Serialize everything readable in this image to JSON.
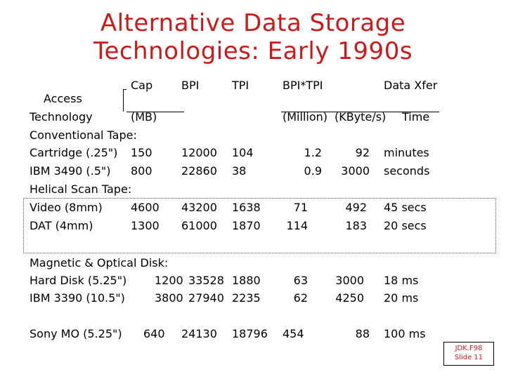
{
  "title": {
    "line1": "Alternative Data Storage",
    "line2": "Technologies: Early 1990s"
  },
  "header": {
    "access": "Access",
    "technology": "Technology",
    "cap": "Cap",
    "mb": "(MB)",
    "bpi": "BPI",
    "tpi": "TPI",
    "bpitpi": "BPI*TPI",
    "million": "(Million)",
    "xfer": "Data Xfer",
    "kbytes": "(KByte/s)",
    "time": "Time"
  },
  "sections": {
    "tape": "Conventional Tape:",
    "helical": "Helical Scan Tape:",
    "disk": "Magnetic & Optical Disk:"
  },
  "rows": {
    "cartridge": {
      "tech": "Cartridge (.25\")",
      "cap": "150",
      "bpi": "12000",
      "tpi": "104",
      "bpitpi": "1.2",
      "xfer": "92",
      "time": "minutes"
    },
    "ibm3490": {
      "tech": "IBM 3490 (.5\")",
      "cap": "800",
      "bpi": "22860",
      "tpi": "38",
      "bpitpi": "0.9",
      "xfer": "3000",
      "time": "seconds"
    },
    "video": {
      "tech": "Video (8mm)",
      "cap": "4600",
      "bpi": "43200",
      "tpi": "1638",
      "bpitpi": "71",
      "xfer": "492",
      "time": "45 secs"
    },
    "dat": {
      "tech": "DAT (4mm)",
      "cap": "1300",
      "bpi": "61000",
      "tpi": "1870",
      "bpitpi": "114",
      "xfer": "183",
      "time": "20 secs"
    },
    "harddisk": {
      "tech": "Hard Disk (5.25\")",
      "cap": "1200",
      "bpi": "33528",
      "tpi": "1880",
      "bpitpi": "63",
      "xfer": "3000",
      "time": "18 ms"
    },
    "ibm3390": {
      "tech": "IBM 3390 (10.5\")",
      "cap": "3800",
      "bpi": "27940",
      "tpi": "2235",
      "bpitpi": "62",
      "xfer": "4250",
      "time": "20 ms"
    },
    "sonymo": {
      "tech": "Sony MO (5.25\")",
      "cap": "640",
      "bpi": "24130",
      "tpi": "18796",
      "bpitpi": "454",
      "xfer": "88",
      "time": "100 ms"
    }
  },
  "footer": {
    "line1": "JDK.F98",
    "line2": "Slide 11"
  },
  "colors": {
    "title": "#cc1a1a",
    "text": "#000000",
    "background": "#ffffff"
  }
}
